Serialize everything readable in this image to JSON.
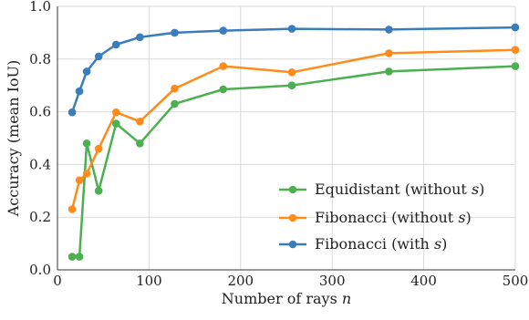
{
  "chart_data": {
    "type": "line",
    "title": "",
    "xlabel": "Number of rays n",
    "xlabel_parts": [
      "Number of rays ",
      "n"
    ],
    "ylabel": "Accuracy (mean IoU)",
    "xlim": [
      0,
      500
    ],
    "ylim": [
      0.0,
      1.0
    ],
    "xticks": [
      "0",
      "100",
      "200",
      "300",
      "400",
      "500"
    ],
    "yticks": [
      "0.0",
      "0.2",
      "0.4",
      "0.6",
      "0.8",
      "1.0"
    ],
    "grid": true,
    "legend_position": "lower-right",
    "series": [
      {
        "name": "Equidistant (without s)",
        "label_parts": [
          "Equidistant (without ",
          "s",
          ")"
        ],
        "color": "#4caf50",
        "x": [
          16,
          24,
          32,
          45,
          64,
          90,
          128,
          181,
          256,
          362,
          500
        ],
        "y": [
          0.05,
          0.05,
          0.48,
          0.3,
          0.555,
          0.48,
          0.63,
          0.685,
          0.7,
          0.753,
          0.773
        ]
      },
      {
        "name": "Fibonacci (without s)",
        "label_parts": [
          "Fibonacci (without ",
          "s",
          ")"
        ],
        "color": "#ff8c1a",
        "x": [
          16,
          24,
          32,
          45,
          64,
          90,
          128,
          181,
          256,
          362,
          500
        ],
        "y": [
          0.23,
          0.34,
          0.365,
          0.46,
          0.598,
          0.563,
          0.688,
          0.773,
          0.75,
          0.822,
          0.835
        ]
      },
      {
        "name": "Fibonacci (with s)",
        "label_parts": [
          "Fibonacci (with ",
          "s",
          ")"
        ],
        "color": "#3a7dbd",
        "x": [
          16,
          24,
          32,
          45,
          64,
          90,
          128,
          181,
          256,
          362,
          500
        ],
        "y": [
          0.598,
          0.678,
          0.753,
          0.81,
          0.855,
          0.883,
          0.9,
          0.908,
          0.915,
          0.912,
          0.92
        ]
      }
    ]
  }
}
